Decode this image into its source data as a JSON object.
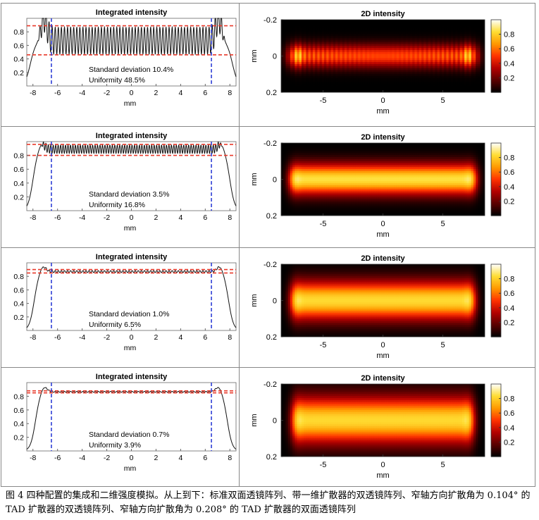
{
  "figure": {
    "caption": "图 4 四种配置的集成和二维强度模拟。从上到下：标准双面透镜阵列、带一维扩散器的双透镜阵列、窄轴方向扩散角为 0.104° 的 TAD 扩散器的双透镜阵列、窄轴方向扩散角为 0.208° 的 TAD 扩散器的双面透镜阵列"
  },
  "colors": {
    "curve": "#111111",
    "red_dashed": "#e8392a",
    "blue_dashed": "#2f3fd6",
    "frame": "#666666",
    "colormap": [
      "#000000",
      "#5a0000",
      "#b30000",
      "#ff3300",
      "#ff9900",
      "#ffdd33",
      "#ffffff"
    ]
  },
  "chart_data": [
    {
      "type": "line",
      "title": "Integrated intensity",
      "xlabel": "mm",
      "xlim": [
        -8.5,
        8.5
      ],
      "ylim": [
        0,
        1
      ],
      "xticks": [
        "-8",
        "-6",
        "-4",
        "-2",
        "0",
        "2",
        "4",
        "6",
        "8"
      ],
      "yticks": [
        "0.2",
        "0.4",
        "0.6",
        "0.8"
      ],
      "red_lines": [
        0.89,
        0.46
      ],
      "blue_lines": [
        -6.5,
        6.5
      ],
      "annotation": [
        "Standard deviation 10.4%",
        "Uniformity 48.5%"
      ],
      "profile": {
        "plateau": 0.67,
        "ripple_amplitude": 0.2,
        "ripple_period": 0.25,
        "peak": 1.0,
        "peak_x": 7.1,
        "edge": 8.2,
        "edge_width": 0.22
      }
    },
    {
      "type": "heatmap",
      "title": "2D intensity",
      "xlabel": "mm",
      "ylabel": "mm",
      "xlim": [
        -8.5,
        8.5
      ],
      "ylim": [
        -0.2,
        0.2
      ],
      "xticks": [
        "-5",
        "0",
        "5"
      ],
      "yticks": [
        "-0.2",
        "0",
        "0.2"
      ],
      "colorbar_ticks": [
        "0.2",
        "0.4",
        "0.6",
        "0.8"
      ],
      "band": {
        "sigma": 0.045,
        "stripes": true,
        "peak": 0.95
      }
    },
    {
      "type": "line",
      "title": "Integrated intensity",
      "xlabel": "mm",
      "xlim": [
        -8.5,
        8.5
      ],
      "ylim": [
        0,
        1
      ],
      "xticks": [
        "-8",
        "-6",
        "-4",
        "-2",
        "0",
        "2",
        "4",
        "6",
        "8"
      ],
      "yticks": [
        "0.2",
        "0.4",
        "0.6",
        "0.8"
      ],
      "red_lines": [
        0.96,
        0.8
      ],
      "blue_lines": [
        -6.5,
        6.5
      ],
      "annotation": [
        "Standard deviation 3.5%",
        "Uniformity 16.8%"
      ],
      "profile": {
        "plateau": 0.89,
        "ripple_amplitude": 0.06,
        "ripple_period": 0.2,
        "peak": 0.98,
        "peak_x": 7.3,
        "edge": 8.0,
        "edge_width": 0.2
      }
    },
    {
      "type": "heatmap",
      "title": "2D intensity",
      "xlabel": "mm",
      "ylabel": "mm",
      "xlim": [
        -8.5,
        8.5
      ],
      "ylim": [
        -0.2,
        0.2
      ],
      "xticks": [
        "-5",
        "0",
        "5"
      ],
      "yticks": [
        "-0.2",
        "0",
        "0.2"
      ],
      "colorbar_ticks": [
        "0.2",
        "0.4",
        "0.6",
        "0.8"
      ],
      "band": {
        "sigma": 0.06,
        "stripes": false,
        "peak": 0.95
      }
    },
    {
      "type": "line",
      "title": "Integrated intensity",
      "xlabel": "mm",
      "xlim": [
        -8.5,
        8.5
      ],
      "ylim": [
        0,
        1
      ],
      "xticks": [
        "-8",
        "-6",
        "-4",
        "-2",
        "0",
        "2",
        "4",
        "6",
        "8"
      ],
      "yticks": [
        "0.2",
        "0.4",
        "0.6",
        "0.8"
      ],
      "red_lines": [
        0.9,
        0.85
      ],
      "blue_lines": [
        -6.5,
        6.5
      ],
      "annotation": [
        "Standard deviation 1.0%",
        "Uniformity 6.5%"
      ],
      "profile": {
        "plateau": 0.87,
        "ripple_amplitude": 0.015,
        "ripple_period": 0.25,
        "peak": 0.96,
        "peak_x": 7.2,
        "edge": 7.9,
        "edge_width": 0.2
      }
    },
    {
      "type": "heatmap",
      "title": "2D intensity",
      "xlabel": "mm",
      "ylabel": "mm",
      "xlim": [
        -8.5,
        8.5
      ],
      "ylim": [
        -0.2,
        0.2
      ],
      "xticks": [
        "-5",
        "0",
        "5"
      ],
      "yticks": [
        "-0.2",
        "0",
        "0.2"
      ],
      "colorbar_ticks": [
        "0.2",
        "0.4",
        "0.6",
        "0.8"
      ],
      "band": {
        "sigma": 0.075,
        "stripes": false,
        "peak": 0.95
      }
    },
    {
      "type": "line",
      "title": "Integrated intensity",
      "xlabel": "mm",
      "xlim": [
        -8.5,
        8.5
      ],
      "ylim": [
        0,
        1
      ],
      "xticks": [
        "-8",
        "-6",
        "-4",
        "-2",
        "0",
        "2",
        "4",
        "6",
        "8"
      ],
      "yticks": [
        "0.2",
        "0.4",
        "0.6",
        "0.8"
      ],
      "red_lines": [
        0.88,
        0.85
      ],
      "blue_lines": [
        -6.5,
        6.5
      ],
      "annotation": [
        "Standard deviation 0.7%",
        "Uniformity 3.9%"
      ],
      "profile": {
        "plateau": 0.865,
        "ripple_amplitude": 0.008,
        "ripple_period": 0.25,
        "peak": 0.95,
        "peak_x": 7.1,
        "edge": 7.8,
        "edge_width": 0.2
      }
    },
    {
      "type": "heatmap",
      "title": "2D intensity",
      "xlabel": "mm",
      "ylabel": "mm",
      "xlim": [
        -8.5,
        8.5
      ],
      "ylim": [
        -0.2,
        0.2
      ],
      "xticks": [
        "-5",
        "0",
        "5"
      ],
      "yticks": [
        "-0.2",
        "0",
        "0.2"
      ],
      "colorbar_ticks": [
        "0.2",
        "0.4",
        "0.6",
        "0.8"
      ],
      "band": {
        "sigma": 0.09,
        "stripes": false,
        "peak": 0.95
      }
    }
  ]
}
